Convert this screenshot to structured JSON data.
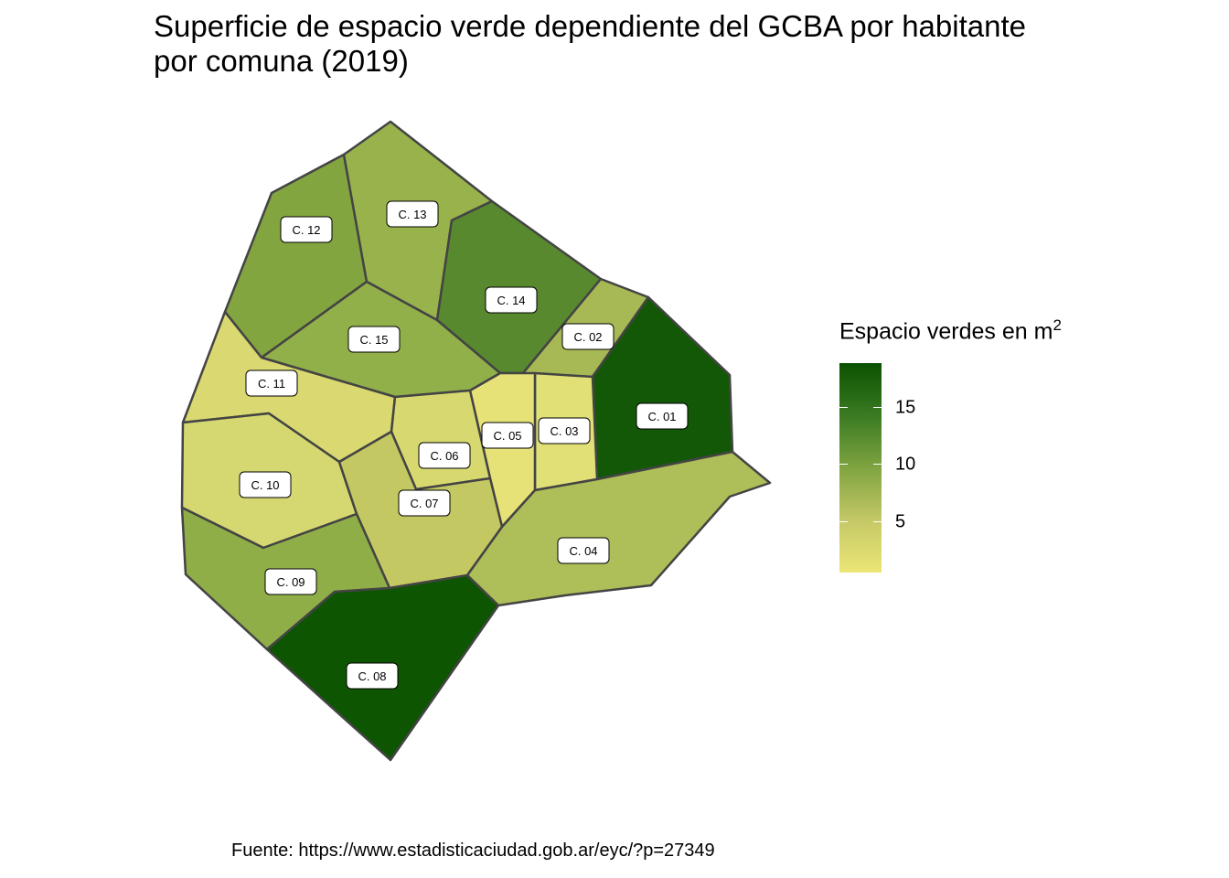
{
  "title": {
    "line1": "Superficie de espacio verde dependiente del GCBA por habitante",
    "line2": "por comuna (2019)"
  },
  "legend": {
    "title": "Espacio verdes en m",
    "title_superscript": "2",
    "ticks": [
      {
        "value": 15,
        "label": "15"
      },
      {
        "value": 10,
        "label": "10"
      },
      {
        "value": 5,
        "label": "5"
      }
    ],
    "range": [
      0.6,
      18.9
    ],
    "colors": [
      "#ece676",
      "#c4c866",
      "#7fa441",
      "#3a7a22",
      "#0b5200"
    ]
  },
  "caption": "Fuente: https://www.estadisticaciudad.gob.ar/eyc/?p=27349",
  "comunas": [
    {
      "id": "c01",
      "label": "C. 01",
      "value": 18.5,
      "color": "#125806"
    },
    {
      "id": "c02",
      "label": "C. 02",
      "value": 6.2,
      "color": "#a6b954"
    },
    {
      "id": "c03",
      "label": "C. 03",
      "value": 1.8,
      "color": "#e1e076"
    },
    {
      "id": "c04",
      "label": "C. 04",
      "value": 5.3,
      "color": "#aebe58"
    },
    {
      "id": "c05",
      "label": "C. 05",
      "value": 0.7,
      "color": "#e7e278"
    },
    {
      "id": "c06",
      "label": "C. 06",
      "value": 2.7,
      "color": "#d7d970"
    },
    {
      "id": "c07",
      "label": "C. 07",
      "value": 4.0,
      "color": "#c4c862"
    },
    {
      "id": "c08",
      "label": "C. 08",
      "value": 18.9,
      "color": "#0e5502"
    },
    {
      "id": "c09",
      "label": "C. 09",
      "value": 7.5,
      "color": "#90ae48"
    },
    {
      "id": "c10",
      "label": "C. 10",
      "value": 2.5,
      "color": "#d5d870"
    },
    {
      "id": "c11",
      "label": "C. 11",
      "value": 2.3,
      "color": "#dad870"
    },
    {
      "id": "c12",
      "label": "C. 12",
      "value": 8.5,
      "color": "#83a540"
    },
    {
      "id": "c13",
      "label": "C. 13",
      "value": 7.0,
      "color": "#98b34c"
    },
    {
      "id": "c14",
      "label": "C. 14",
      "value": 11.5,
      "color": "#58892e"
    },
    {
      "id": "c15",
      "label": "C. 15",
      "value": 7.2,
      "color": "#92b049"
    }
  ]
}
